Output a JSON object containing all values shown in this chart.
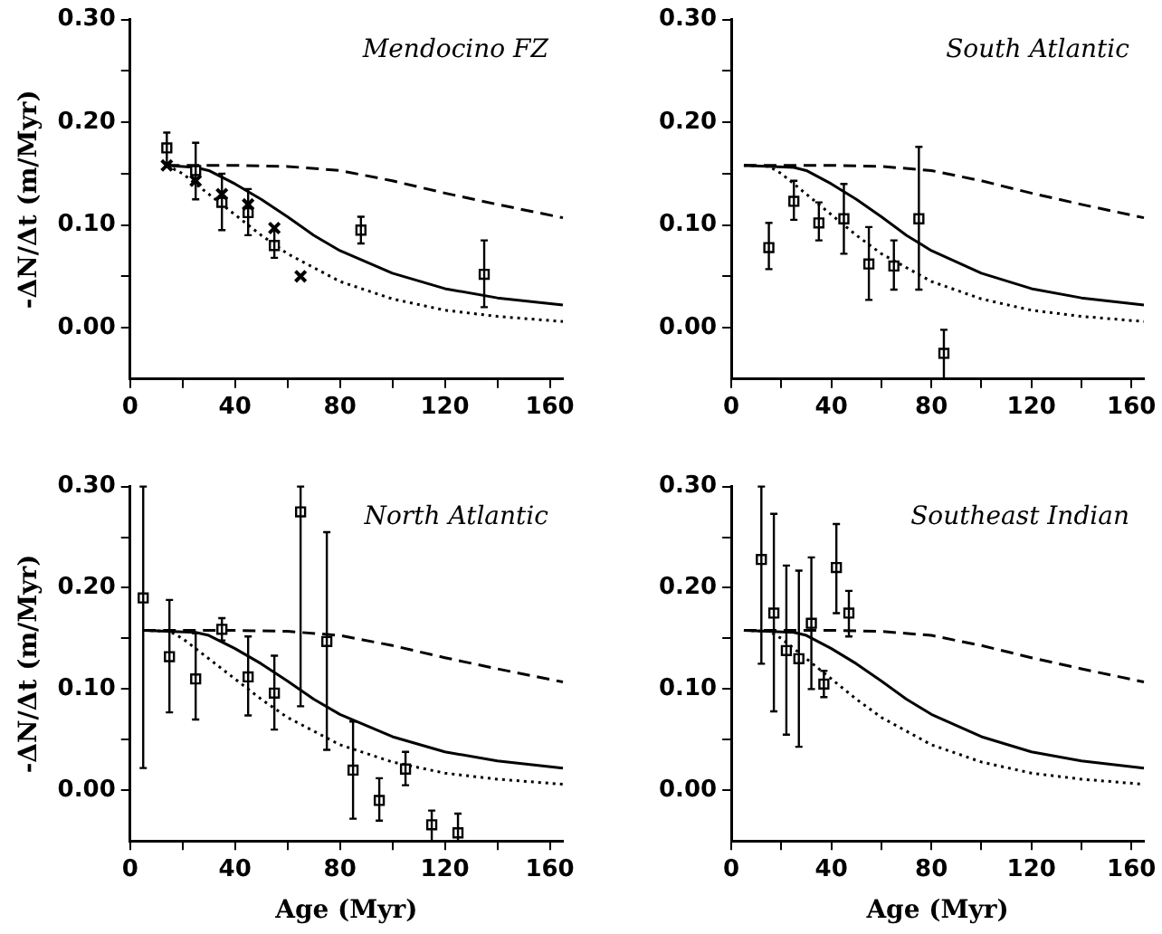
{
  "chart_data": [
    {
      "type": "scatter",
      "title": "Mendocino FZ",
      "ylabel": "-ΔN/Δt (m/Myr)",
      "xlim": [
        0,
        165
      ],
      "ylim": [
        -0.05,
        0.3
      ],
      "grid": false,
      "legend": false,
      "xticks": [
        0,
        {
          "value": 20,
          "label": null
        },
        40,
        {
          "value": 60,
          "label": null
        },
        80,
        {
          "value": 100,
          "label": null
        },
        120,
        {
          "value": 140,
          "label": null
        },
        160
      ],
      "yticks": [
        {
          "value": 0,
          "label": "0.00"
        },
        {
          "value": 0.05,
          "label": null
        },
        {
          "value": 0.1,
          "label": "0.10"
        },
        {
          "value": 0.15,
          "label": null
        },
        {
          "value": 0.2,
          "label": "0.20"
        },
        {
          "value": 0.25,
          "label": null
        },
        {
          "value": 0.3,
          "label": "0.30"
        }
      ],
      "series": [
        {
          "type": "line",
          "marker": "none",
          "line_style": "dashed",
          "color": "#000000",
          "x": [
            14,
            40,
            60,
            80,
            100,
            120,
            140,
            165
          ],
          "values": [
            0.158,
            0.158,
            0.157,
            0.153,
            0.143,
            0.131,
            0.12,
            0.107
          ]
        },
        {
          "type": "line",
          "marker": "none",
          "line_style": "solid",
          "color": "#000000",
          "x": [
            14,
            25,
            30,
            40,
            50,
            60,
            70,
            80,
            100,
            120,
            140,
            165
          ],
          "values": [
            0.158,
            0.156,
            0.153,
            0.14,
            0.125,
            0.108,
            0.09,
            0.075,
            0.053,
            0.038,
            0.029,
            0.022
          ]
        },
        {
          "type": "line",
          "marker": "none",
          "line_style": "dotted",
          "color": "#000000",
          "x": [
            14,
            20,
            30,
            40,
            50,
            60,
            80,
            100,
            120,
            140,
            165
          ],
          "values": [
            0.158,
            0.15,
            0.13,
            0.11,
            0.09,
            0.072,
            0.045,
            0.028,
            0.017,
            0.011,
            0.006
          ]
        },
        {
          "type": "scatter",
          "marker": "cross",
          "color": "#000000",
          "x": [
            14,
            25,
            35,
            45,
            55,
            65
          ],
          "values": [
            0.158,
            0.143,
            0.13,
            0.12,
            0.097,
            0.05
          ]
        },
        {
          "type": "scatter",
          "marker": "square",
          "color": "#000000",
          "x": [
            14,
            25,
            35,
            45,
            55,
            88,
            135
          ],
          "values": [
            0.175,
            0.153,
            0.122,
            0.112,
            0.08,
            0.095,
            0.052
          ],
          "errors": [
            [
              0.16,
              0.19
            ],
            [
              0.125,
              0.18
            ],
            [
              0.095,
              0.15
            ],
            [
              0.09,
              0.135
            ],
            [
              0.068,
              0.095
            ],
            [
              0.082,
              0.108
            ],
            [
              0.02,
              0.085
            ]
          ]
        }
      ]
    },
    {
      "type": "scatter",
      "title": "South Atlantic",
      "xlim": [
        0,
        165
      ],
      "ylim": [
        -0.05,
        0.3
      ],
      "grid": false,
      "legend": false,
      "xticks": [
        0,
        {
          "value": 20,
          "label": null
        },
        40,
        {
          "value": 60,
          "label": null
        },
        80,
        {
          "value": 100,
          "label": null
        },
        120,
        {
          "value": 140,
          "label": null
        },
        160
      ],
      "yticks": [
        {
          "value": 0,
          "label": "0.00"
        },
        {
          "value": 0.05,
          "label": null
        },
        {
          "value": 0.1,
          "label": "0.10"
        },
        {
          "value": 0.15,
          "label": null
        },
        {
          "value": 0.2,
          "label": "0.20"
        },
        {
          "value": 0.25,
          "label": null
        },
        {
          "value": 0.3,
          "label": "0.30"
        }
      ],
      "series": [
        {
          "type": "line",
          "marker": "none",
          "line_style": "dashed",
          "color": "#000000",
          "x": [
            5,
            40,
            60,
            80,
            100,
            120,
            140,
            165
          ],
          "values": [
            0.158,
            0.158,
            0.157,
            0.153,
            0.143,
            0.131,
            0.12,
            0.107
          ]
        },
        {
          "type": "line",
          "marker": "none",
          "line_style": "solid",
          "color": "#000000",
          "x": [
            5,
            25,
            30,
            40,
            50,
            60,
            70,
            80,
            100,
            120,
            140,
            165
          ],
          "values": [
            0.158,
            0.156,
            0.153,
            0.14,
            0.125,
            0.108,
            0.09,
            0.075,
            0.053,
            0.038,
            0.029,
            0.022
          ]
        },
        {
          "type": "line",
          "marker": "none",
          "line_style": "dotted",
          "color": "#000000",
          "x": [
            5,
            15,
            20,
            30,
            40,
            50,
            60,
            80,
            100,
            120,
            140,
            165
          ],
          "values": [
            0.158,
            0.157,
            0.15,
            0.13,
            0.11,
            0.09,
            0.072,
            0.045,
            0.028,
            0.017,
            0.011,
            0.006
          ]
        },
        {
          "type": "scatter",
          "marker": "square",
          "color": "#000000",
          "x": [
            15,
            25,
            35,
            45,
            55,
            65,
            75,
            85
          ],
          "values": [
            0.078,
            0.123,
            0.102,
            0.106,
            0.062,
            0.06,
            0.106,
            -0.025
          ],
          "errors": [
            [
              0.057,
              0.102
            ],
            [
              0.105,
              0.143
            ],
            [
              0.085,
              0.122
            ],
            [
              0.072,
              0.14
            ],
            [
              0.027,
              0.098
            ],
            [
              0.037,
              0.085
            ],
            [
              0.037,
              0.176
            ],
            [
              -0.05,
              -0.002
            ]
          ]
        }
      ]
    },
    {
      "type": "scatter",
      "title": "North Atlantic",
      "xlabel": "Age (Myr)",
      "ylabel": "-ΔN/Δt (m/Myr)",
      "xlim": [
        0,
        165
      ],
      "ylim": [
        -0.05,
        0.3
      ],
      "grid": false,
      "legend": false,
      "xticks": [
        0,
        {
          "value": 20,
          "label": null
        },
        40,
        {
          "value": 60,
          "label": null
        },
        80,
        {
          "value": 100,
          "label": null
        },
        120,
        {
          "value": 140,
          "label": null
        },
        160
      ],
      "yticks": [
        {
          "value": 0,
          "label": "0.00"
        },
        {
          "value": 0.05,
          "label": null
        },
        {
          "value": 0.1,
          "label": "0.10"
        },
        {
          "value": 0.15,
          "label": null
        },
        {
          "value": 0.2,
          "label": "0.20"
        },
        {
          "value": 0.25,
          "label": null
        },
        {
          "value": 0.3,
          "label": "0.30"
        }
      ],
      "series": [
        {
          "type": "line",
          "marker": "none",
          "line_style": "dashed",
          "color": "#000000",
          "x": [
            5,
            40,
            60,
            80,
            100,
            120,
            140,
            165
          ],
          "values": [
            0.158,
            0.158,
            0.157,
            0.153,
            0.143,
            0.131,
            0.12,
            0.107
          ]
        },
        {
          "type": "line",
          "marker": "none",
          "line_style": "solid",
          "color": "#000000",
          "x": [
            5,
            25,
            30,
            40,
            50,
            60,
            70,
            80,
            100,
            120,
            140,
            165
          ],
          "values": [
            0.158,
            0.156,
            0.153,
            0.14,
            0.125,
            0.108,
            0.09,
            0.075,
            0.053,
            0.038,
            0.029,
            0.022
          ]
        },
        {
          "type": "line",
          "marker": "none",
          "line_style": "dotted",
          "color": "#000000",
          "x": [
            5,
            15,
            20,
            30,
            40,
            50,
            60,
            80,
            100,
            120,
            140,
            165
          ],
          "values": [
            0.158,
            0.157,
            0.15,
            0.13,
            0.11,
            0.09,
            0.072,
            0.045,
            0.028,
            0.017,
            0.011,
            0.006
          ]
        },
        {
          "type": "scatter",
          "marker": "square",
          "color": "#000000",
          "x": [
            5,
            15,
            25,
            35,
            45,
            55,
            65,
            75,
            85,
            95,
            105,
            115,
            125
          ],
          "values": [
            0.19,
            0.132,
            0.11,
            0.159,
            0.112,
            0.096,
            0.275,
            0.147,
            0.02,
            -0.01,
            0.021,
            -0.034,
            -0.042
          ],
          "errors": [
            [
              0.022,
              0.3
            ],
            [
              0.077,
              0.188
            ],
            [
              0.07,
              0.155
            ],
            [
              0.148,
              0.17
            ],
            [
              0.074,
              0.152
            ],
            [
              0.06,
              0.133
            ],
            [
              0.083,
              0.3
            ],
            [
              0.04,
              0.255
            ],
            [
              -0.028,
              0.068
            ],
            [
              -0.03,
              0.012
            ],
            [
              0.005,
              0.038
            ],
            [
              -0.05,
              -0.02
            ],
            [
              -0.05,
              -0.023
            ]
          ]
        }
      ]
    },
    {
      "type": "scatter",
      "title": "Southeast Indian",
      "xlabel": "Age (Myr)",
      "xlim": [
        0,
        165
      ],
      "ylim": [
        -0.05,
        0.3
      ],
      "grid": false,
      "legend": false,
      "xticks": [
        0,
        {
          "value": 20,
          "label": null
        },
        40,
        {
          "value": 60,
          "label": null
        },
        80,
        {
          "value": 100,
          "label": null
        },
        120,
        {
          "value": 140,
          "label": null
        },
        160
      ],
      "yticks": [
        {
          "value": 0,
          "label": "0.00"
        },
        {
          "value": 0.05,
          "label": null
        },
        {
          "value": 0.1,
          "label": "0.10"
        },
        {
          "value": 0.15,
          "label": null
        },
        {
          "value": 0.2,
          "label": "0.20"
        },
        {
          "value": 0.25,
          "label": null
        },
        {
          "value": 0.3,
          "label": "0.30"
        }
      ],
      "series": [
        {
          "type": "line",
          "marker": "none",
          "line_style": "dashed",
          "color": "#000000",
          "x": [
            5,
            40,
            60,
            80,
            100,
            120,
            140,
            165
          ],
          "values": [
            0.158,
            0.158,
            0.157,
            0.153,
            0.143,
            0.131,
            0.12,
            0.107
          ]
        },
        {
          "type": "line",
          "marker": "none",
          "line_style": "solid",
          "color": "#000000",
          "x": [
            5,
            25,
            30,
            40,
            50,
            60,
            70,
            80,
            100,
            120,
            140,
            165
          ],
          "values": [
            0.158,
            0.156,
            0.153,
            0.14,
            0.125,
            0.108,
            0.09,
            0.075,
            0.053,
            0.038,
            0.029,
            0.022
          ]
        },
        {
          "type": "line",
          "marker": "none",
          "line_style": "dotted",
          "color": "#000000",
          "x": [
            5,
            15,
            20,
            30,
            40,
            50,
            60,
            80,
            100,
            120,
            140,
            165
          ],
          "values": [
            0.158,
            0.157,
            0.15,
            0.13,
            0.11,
            0.09,
            0.072,
            0.045,
            0.028,
            0.017,
            0.011,
            0.006
          ]
        },
        {
          "type": "scatter",
          "marker": "square",
          "color": "#000000",
          "x": [
            12,
            17,
            22,
            27,
            32,
            37,
            42,
            47
          ],
          "values": [
            0.228,
            0.175,
            0.138,
            0.13,
            0.165,
            0.105,
            0.22,
            0.175
          ],
          "errors": [
            [
              0.125,
              0.3
            ],
            [
              0.078,
              0.273
            ],
            [
              0.055,
              0.222
            ],
            [
              0.043,
              0.217
            ],
            [
              0.1,
              0.23
            ],
            [
              0.092,
              0.118
            ],
            [
              0.175,
              0.263
            ],
            [
              0.152,
              0.197
            ]
          ]
        }
      ]
    }
  ]
}
